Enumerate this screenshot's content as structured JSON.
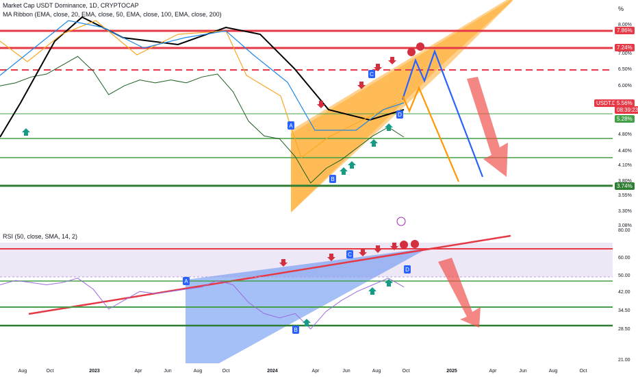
{
  "header": {
    "title": "Market Cap USDT Dominance, 1D, CRYPTOCAP",
    "indicator": "MA Ribbon (EMA, close, 20, EMA, close, 50, EMA, close, 100, EMA, close, 200)",
    "percent_label": "%"
  },
  "rsi_header": {
    "indicator": "RSI (50, close, SMA, 14, 2)"
  },
  "price_tags": {
    "level_high": "7.86%",
    "level_mid": "7.24%",
    "current": "USDT.D",
    "current_value": "5.56%",
    "countdown": "08:39:23",
    "ma_value": "5.28%",
    "level_low": "3.74%"
  },
  "colors": {
    "red_level": "#e53946",
    "green_level": "#43a047",
    "dark_green_level": "#2e7d32",
    "orange_wedge": "#ff9800",
    "blue_path": "#2962ff",
    "rsi_line": "#9c6ade",
    "rsi_wedge": "#5b8def",
    "marker_red": "#d32f3f",
    "marker_green": "#169b84",
    "label_blue": "#2962ff"
  },
  "chart_data": [
    {
      "type": "line",
      "title": "Market Cap USDT Dominance, 1D, CRYPTOCAP",
      "ylim": [
        3.0,
        9.4
      ],
      "y_ticks": [
        "%",
        "8.00%",
        "7.00%",
        "6.50%",
        "6.00%",
        "5.50%",
        "5.00%",
        "4.80%",
        "4.40%",
        "4.10%",
        "3.80%",
        "3.55%",
        "3.30%",
        "3.08%"
      ],
      "x_ticks": [
        "Aug",
        "Oct",
        "2023",
        "Apr",
        "Jun",
        "Aug",
        "Oct",
        "2024",
        "Apr",
        "Jun",
        "Aug",
        "Oct",
        "2025",
        "Apr",
        "Jun",
        "Aug",
        "Oct"
      ],
      "x": [
        "2022-07",
        "2022-08",
        "2022-09",
        "2022-10",
        "2022-11",
        "2022-12",
        "2023-01",
        "2023-02",
        "2023-03",
        "2023-04",
        "2023-05",
        "2023-06",
        "2023-07",
        "2023-08",
        "2023-09",
        "2023-10",
        "2023-11",
        "2023-12",
        "2024-01",
        "2024-02",
        "2024-03",
        "2024-04",
        "2024-05",
        "2024-06",
        "2024-07",
        "2024-08",
        "2024-09"
      ],
      "series": [
        {
          "name": "USDT.D",
          "values": [
            7.3,
            7.4,
            7.6,
            7.7,
            8.0,
            8.3,
            7.8,
            7.0,
            7.3,
            7.5,
            7.4,
            7.5,
            7.4,
            7.6,
            7.7,
            7.1,
            6.1,
            5.6,
            5.5,
            4.9,
            4.0,
            4.5,
            4.8,
            5.2,
            5.6,
            5.9,
            5.56
          ]
        }
      ],
      "horizontal_levels": [
        7.86,
        7.24,
        6.5,
        5.28,
        4.7,
        4.3,
        3.74
      ],
      "markers": [
        "A",
        "B",
        "C",
        "D"
      ]
    },
    {
      "type": "line",
      "title": "RSI (50, close, SMA, 14, 2)",
      "ylim": [
        21.0,
        80.0
      ],
      "y_ticks": [
        "80.00",
        "60.00",
        "50.00",
        "42.00",
        "34.50",
        "28.50",
        "21.00"
      ],
      "x": [
        "2022-07",
        "2022-08",
        "2022-09",
        "2022-10",
        "2022-11",
        "2022-12",
        "2023-01",
        "2023-02",
        "2023-03",
        "2023-04",
        "2023-05",
        "2023-06",
        "2023-07",
        "2023-08",
        "2023-09",
        "2023-10",
        "2023-11",
        "2023-12",
        "2024-01",
        "2024-02",
        "2024-03",
        "2024-04",
        "2024-05",
        "2024-06",
        "2024-07",
        "2024-08",
        "2024-09"
      ],
      "series": [
        {
          "name": "RSI",
          "values": [
            55,
            57,
            56,
            55,
            56,
            58,
            53,
            44,
            48,
            52,
            51,
            52,
            53,
            54,
            57,
            55,
            47,
            42,
            40,
            42,
            35,
            43,
            48,
            52,
            55,
            58,
            54
          ]
        }
      ],
      "horizontal_levels": [
        64,
        47.5,
        37.5,
        30
      ],
      "markers": [
        "A",
        "B",
        "C",
        "D"
      ]
    }
  ]
}
